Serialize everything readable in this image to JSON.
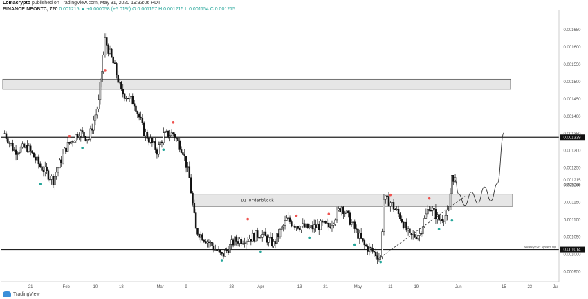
{
  "header": {
    "author": "Lomacrypto",
    "published": "published on TradingView.com, May 31, 2020 19:33:06 PDT",
    "symbol": "BINANCE:NEOBTC, 720",
    "ohlc": "0.001215 ▲ +0.000058 (+5.01%) O:0.001157 H:0.001215 L:0.001154 C:0.001215"
  },
  "footer": {
    "brand": "TradingView"
  },
  "colors": {
    "up": "#26a69a",
    "down": "#ef5350",
    "candle": "#111111",
    "zone_fill": "#e6e6e6",
    "zone_stroke": "#555555"
  },
  "chart_data": {
    "type": "candlestick",
    "symbol": "BINANCE:NEOBTC",
    "interval": "720",
    "y_ticks": [
      "0.001650",
      "0.001600",
      "0.001550",
      "0.001500",
      "0.001450",
      "0.001400",
      "0.001350",
      "0.001300",
      "0.001250",
      "0.001200",
      "0.001150",
      "0.001100",
      "0.001050",
      "0.001000",
      "0.000950"
    ],
    "x_ticks": [
      "21",
      "Feb",
      "10",
      "18",
      "Mar",
      "9",
      "23",
      "Apr",
      "13",
      "21",
      "May",
      "11",
      "19",
      "Jun",
      "15",
      "23",
      "Jul"
    ],
    "price_badges": [
      {
        "value": "0.001339",
        "level": 0.001339
      },
      {
        "value": "0.001014",
        "level": 0.001014
      }
    ],
    "current_price": {
      "value": "0.001215",
      "countdown": "09:26:55"
    },
    "horizontal_lines": [
      {
        "level": 0.001339,
        "label": ""
      },
      {
        "level": 0.001014,
        "label": "Weekly S/R system flip"
      }
    ],
    "zones": [
      {
        "from": 0.001478,
        "to": 0.001507,
        "label": ""
      },
      {
        "from": 0.001139,
        "to": 0.001174,
        "label": "D1 Orderblock"
      }
    ],
    "trendline": {
      "from_date": "2020-05-07",
      "from_price": 0.000985,
      "to_date": "2020-06-03",
      "to_price": 0.001168
    },
    "projection": [
      [
        "2020-06-01",
        0.001175
      ],
      [
        "2020-06-03",
        0.001142
      ],
      [
        "2020-06-05",
        0.00118
      ],
      [
        "2020-06-07",
        0.001148
      ],
      [
        "2020-06-09",
        0.001195
      ],
      [
        "2020-06-11",
        0.001155
      ],
      [
        "2020-06-13",
        0.001205
      ],
      [
        "2020-06-15",
        0.001352
      ]
    ],
    "price_path": [
      [
        "2020-01-13",
        0.00135
      ],
      [
        "2020-01-16",
        0.0013
      ],
      [
        "2020-01-20",
        0.00131
      ],
      [
        "2020-01-24",
        0.001255
      ],
      [
        "2020-01-28",
        0.001215
      ],
      [
        "2020-02-01",
        0.00131
      ],
      [
        "2020-02-05",
        0.001355
      ],
      [
        "2020-02-08",
        0.001335
      ],
      [
        "2020-02-11",
        0.00144
      ],
      [
        "2020-02-13",
        0.00162
      ],
      [
        "2020-02-16",
        0.00154
      ],
      [
        "2020-02-18",
        0.00147
      ],
      [
        "2020-02-22",
        0.00144
      ],
      [
        "2020-02-25",
        0.001355
      ],
      [
        "2020-02-29",
        0.0013
      ],
      [
        "2020-03-02",
        0.001345
      ],
      [
        "2020-03-05",
        0.00135
      ],
      [
        "2020-03-08",
        0.0013
      ],
      [
        "2020-03-10",
        0.00122
      ],
      [
        "2020-03-12",
        0.00107
      ],
      [
        "2020-03-16",
        0.001035
      ],
      [
        "2020-03-20",
        0.000995
      ],
      [
        "2020-03-24",
        0.00104
      ],
      [
        "2020-03-28",
        0.001045
      ],
      [
        "2020-04-01",
        0.00106
      ],
      [
        "2020-04-05",
        0.00103
      ],
      [
        "2020-04-09",
        0.0011
      ],
      [
        "2020-04-12",
        0.001085
      ],
      [
        "2020-04-16",
        0.001075
      ],
      [
        "2020-04-20",
        0.001085
      ],
      [
        "2020-04-22",
        0.00108
      ],
      [
        "2020-04-26",
        0.00114
      ],
      [
        "2020-04-29",
        0.00109
      ],
      [
        "2020-05-03",
        0.001025
      ],
      [
        "2020-05-06",
        0.001005
      ],
      [
        "2020-05-08",
        0.00099
      ],
      [
        "2020-05-09",
        0.00116
      ],
      [
        "2020-05-11",
        0.00115
      ],
      [
        "2020-05-14",
        0.00111
      ],
      [
        "2020-05-17",
        0.00105
      ],
      [
        "2020-05-20",
        0.00106
      ],
      [
        "2020-05-23",
        0.00114
      ],
      [
        "2020-05-26",
        0.0011
      ],
      [
        "2020-05-29",
        0.00112
      ],
      [
        "2020-05-30",
        0.00123
      ],
      [
        "2020-05-31",
        0.001215
      ]
    ],
    "signals_up": [
      [
        "2020-01-24",
        0.001215
      ],
      [
        "2020-02-06",
        0.00132
      ],
      [
        "2020-03-02",
        0.001315
      ],
      [
        "2020-03-20",
        0.000995
      ],
      [
        "2020-04-01",
        0.00102
      ],
      [
        "2020-04-16",
        0.00106
      ],
      [
        "2020-04-30",
        0.00104
      ],
      [
        "2020-05-08",
        0.00099
      ],
      [
        "2020-05-26",
        0.001085
      ],
      [
        "2020-05-30",
        0.00111
      ]
    ],
    "signals_down": [
      [
        "2020-02-02",
        0.00133
      ],
      [
        "2020-02-13",
        0.00152
      ],
      [
        "2020-03-05",
        0.00137
      ],
      [
        "2020-03-28",
        0.00109
      ],
      [
        "2020-04-12",
        0.0011
      ],
      [
        "2020-04-22",
        0.001105
      ],
      [
        "2020-05-11",
        0.00116
      ],
      [
        "2020-05-23",
        0.00115
      ]
    ],
    "x_range": [
      "2020-01-12",
      "2020-07-02"
    ],
    "ylim": [
      0.000925,
      0.0017
    ],
    "log_scale": false,
    "grid": false
  }
}
